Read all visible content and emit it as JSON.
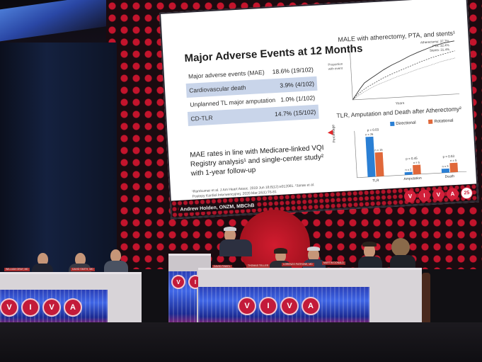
{
  "slide": {
    "title": "Major Adverse Events at 12 Months",
    "rows": [
      {
        "label": "Major adverse events (MAE)",
        "value": "18.6% (19/102)"
      },
      {
        "label": "Cardiovascular death",
        "value": "3.9% (4/102)"
      },
      {
        "label": "Unplanned TL major amputation",
        "value": "1.0% (1/102)"
      },
      {
        "label": "CD-TLR",
        "value": "14.7% (15/102)"
      }
    ],
    "body": "MAE rates in line with Medicare-linked VQI Registry analysis¹ and single-center study² with 1-year follow-up",
    "references": "¹Ramkumar et al. J Am Heart Assoc. 2019 Jun 18;8(12):e012081. ²Janas et al. Postepy Kardiol Interwencyjnej. 2020 Mar;16(1):76-81",
    "speaker": "Andrew Holden, ONZM, MBChB",
    "km_chart": {
      "title": "MALE with atherectomy, PTA, and stents¹",
      "ylabel": "Proportion with event",
      "xlabel": "Years",
      "legend": [
        "Atherectomy: 37.7%",
        "PTA: 32.4%",
        "Stents: 31.4%"
      ]
    },
    "bar_chart": {
      "title": "TLR, Amputation and Death after Atherectomy²",
      "ylabel": "Percentage",
      "categories": [
        "TLR",
        "Amputation",
        "Death"
      ],
      "series": [
        {
          "name": "Directional",
          "color": "#2a7fd4",
          "values": [
            30,
            2,
            3
          ]
        },
        {
          "name": "Rotational",
          "color": "#e0683a",
          "values": [
            18,
            7,
            7
          ]
        }
      ],
      "n_labels": [
        [
          "n = 26",
          "n = 15"
        ],
        [
          "n = 2",
          "n = 5"
        ],
        [
          "n = 3",
          "n = 5"
        ]
      ],
      "p_labels": [
        "p = 0.03",
        "p = 0.45",
        "p = 0.53"
      ],
      "ylim": [
        0,
        35
      ]
    }
  },
  "branding": {
    "letters": [
      "V",
      "I",
      "V",
      "A"
    ],
    "edition": "25"
  },
  "nameplates": [
    "WILLIAM GRAY, MD",
    "DAVID SMITH, MD",
    "DAVID FINKEL",
    "THOMAS TELLER",
    "LORENZO PATRONE, MD",
    "MARTIN DONALD"
  ],
  "colors": {
    "viva_red": "#d2203a",
    "dots_red": "#c4142c",
    "table_blue": "#3f66e6"
  }
}
